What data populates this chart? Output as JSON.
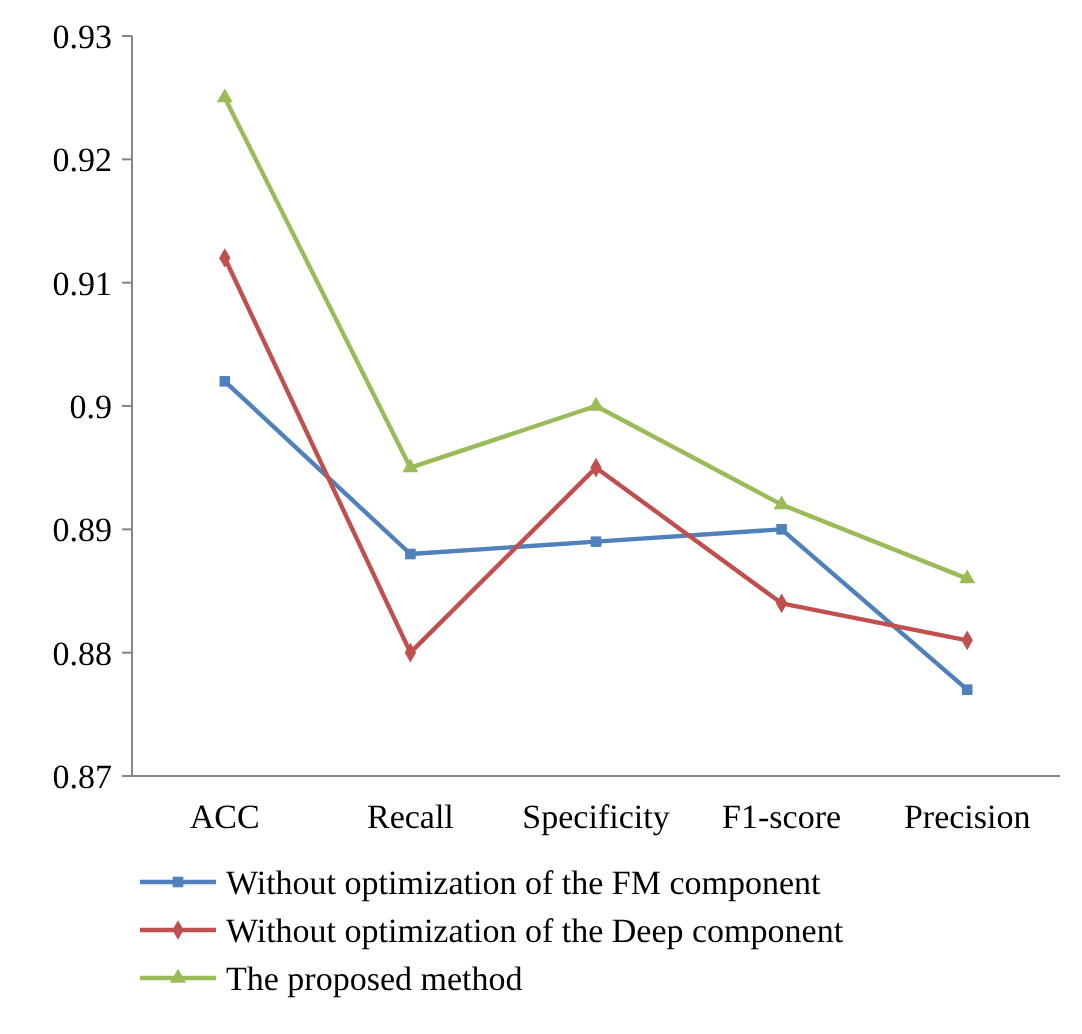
{
  "chart_data": {
    "type": "line",
    "categories": [
      "ACC",
      "Recall",
      "Specificity",
      "F1-score",
      "Precision"
    ],
    "series": [
      {
        "name": "Without optimization of the FM component",
        "color": "#4f81bd",
        "marker": "square",
        "values": [
          0.902,
          0.888,
          0.889,
          0.89,
          0.877
        ]
      },
      {
        "name": "Without optimization of the Deep component",
        "color": "#c0504d",
        "marker": "diamond",
        "values": [
          0.912,
          0.88,
          0.895,
          0.884,
          0.881
        ]
      },
      {
        "name": "The proposed method",
        "color": "#9bbb59",
        "marker": "triangle",
        "values": [
          0.925,
          0.895,
          0.9,
          0.892,
          0.886
        ]
      }
    ],
    "ylim": [
      0.87,
      0.93
    ],
    "yticks": [
      0.87,
      0.88,
      0.89,
      0.9,
      0.91,
      0.92,
      0.93
    ],
    "grid": false,
    "legend": "bottom"
  }
}
